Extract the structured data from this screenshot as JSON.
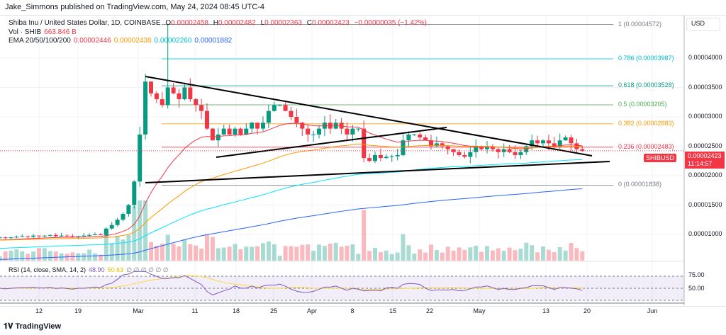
{
  "header": {
    "published": "Jake_Simmons published on TradingView.com, May 24, 2024 08:45 UTC-4"
  },
  "legend": {
    "symbol": "Shiba Inu / United States Dollar, 1D, COINBASE",
    "o_label": "O",
    "o": "0.00002458",
    "h_label": "H",
    "h": "0.00002482",
    "l_label": "L",
    "l": "0.00002363",
    "c_label": "C",
    "c": "0.00002423",
    "change": "−0.00000035 (−1.42%)",
    "vol_label": "Vol · SHIB",
    "vol": "663.846 B",
    "ema_label": "EMA 20/50/100/200",
    "ema20": "0.00002446",
    "ema50": "0.00002438",
    "ema100": "0.00002260",
    "ema200": "0.00001882"
  },
  "rsi": {
    "label": "RSI (14, close, SMA, 14, 2)",
    "rsi": "48.90",
    "sma": "50.63",
    "na": "∅ ∅ ∅ ∅ ∅ ∅",
    "ticks": [
      "75.00",
      "50.00"
    ]
  },
  "price_axis": {
    "currency": "USD",
    "ticks": [
      "0.00004000",
      "0.00003500",
      "0.00003000",
      "0.00002500",
      "0.00002000",
      "0.00001500",
      "0.00001000"
    ],
    "symbol_tag": "SHIBUSD",
    "last_price": "0.00002423",
    "countdown": "11:14:57"
  },
  "fib": [
    {
      "label": "1 (0.00004572)",
      "price": 4.572e-05,
      "color": "#787b86"
    },
    {
      "label": "0.786 (0.00003987)",
      "price": 3.987e-05,
      "color": "#00bcd4"
    },
    {
      "label": "0.618 (0.00003528)",
      "price": 3.528e-05,
      "color": "#089981"
    },
    {
      "label": "0.5 (0.00003205)",
      "price": 3.205e-05,
      "color": "#4caf50"
    },
    {
      "label": "0.382 (0.00002883)",
      "price": 2.883e-05,
      "color": "#ff9800"
    },
    {
      "label": "0.236 (0.00002483)",
      "price": 2.483e-05,
      "color": "#f23645"
    },
    {
      "label": "0 (0.00001838)",
      "price": 1.838e-05,
      "color": "#787b86"
    }
  ],
  "x_axis": [
    "12",
    "19",
    "Mar",
    "11",
    "18",
    "25",
    "Apr",
    "8",
    "15",
    "22",
    "May",
    "13",
    "20",
    "Jun"
  ],
  "footer": {
    "logo": "TradingView"
  },
  "colors": {
    "up": "#089981",
    "down": "#f23645",
    "ema20": "#f23645",
    "ema50": "#ff9800",
    "ema100": "#00e5ff",
    "ema200": "#2962ff",
    "rsi": "#7e57c2",
    "rsi_sma": "#fdd835"
  },
  "chart_data": {
    "type": "candlestick",
    "title": "Shiba Inu / United States Dollar, 1D, COINBASE",
    "start_date": "2024-02-05",
    "ylabel": "USD",
    "ylim": [
      7.5e-06,
      4.85e-05
    ],
    "closes": [
      9.5e-06,
      9.4e-06,
      9.5e-06,
      9.6e-06,
      9.7e-06,
      9.6e-06,
      9.8e-06,
      9.7e-06,
      9.8e-06,
      9.9e-06,
      9.7e-06,
      9.8e-06,
      9.7e-06,
      9.6e-06,
      9.7e-06,
      9.8e-06,
      9.9e-06,
      1e-05,
      9.9e-06,
      1.1e-05,
      1.16e-05,
      1.25e-05,
      1.35e-05,
      1.5e-05,
      1.9e-05,
      2.7e-05,
      3.6e-05,
      3.4e-05,
      3.3e-05,
      3.2e-05,
      3.5e-05,
      3.4e-05,
      3.3e-05,
      3.5e-05,
      3.3e-05,
      3.2e-05,
      3.1e-05,
      2.8e-05,
      2.6e-05,
      2.7e-05,
      2.8e-05,
      2.7e-05,
      2.8e-05,
      2.7e-05,
      2.8e-05,
      2.9e-05,
      2.8e-05,
      2.9e-05,
      3.1e-05,
      3.2e-05,
      3.2e-05,
      3.1e-05,
      3e-05,
      2.9e-05,
      2.8e-05,
      2.7e-05,
      2.7e-05,
      2.8e-05,
      2.9e-05,
      2.8e-05,
      2.9e-05,
      2.8e-05,
      2.7e-05,
      2.8e-05,
      2.8e-05,
      2.3e-05,
      2.25e-05,
      2.35e-05,
      2.3e-05,
      2.32e-05,
      2.33e-05,
      2.35e-05,
      2.6e-05,
      2.7e-05,
      2.7e-05,
      2.65e-05,
      2.6e-05,
      2.5e-05,
      2.55e-05,
      2.5e-05,
      2.45e-05,
      2.4e-05,
      2.35e-05,
      2.32e-05,
      2.4e-05,
      2.5e-05,
      2.45e-05,
      2.5e-05,
      2.45e-05,
      2.4e-05,
      2.45e-05,
      2.4e-05,
      2.35e-05,
      2.4e-05,
      2.5e-05,
      2.6e-05,
      2.55e-05,
      2.6e-05,
      2.55e-05,
      2.5e-05,
      2.6e-05,
      2.65e-05,
      2.55e-05,
      2.45e-05,
      2.423e-05
    ]
  }
}
